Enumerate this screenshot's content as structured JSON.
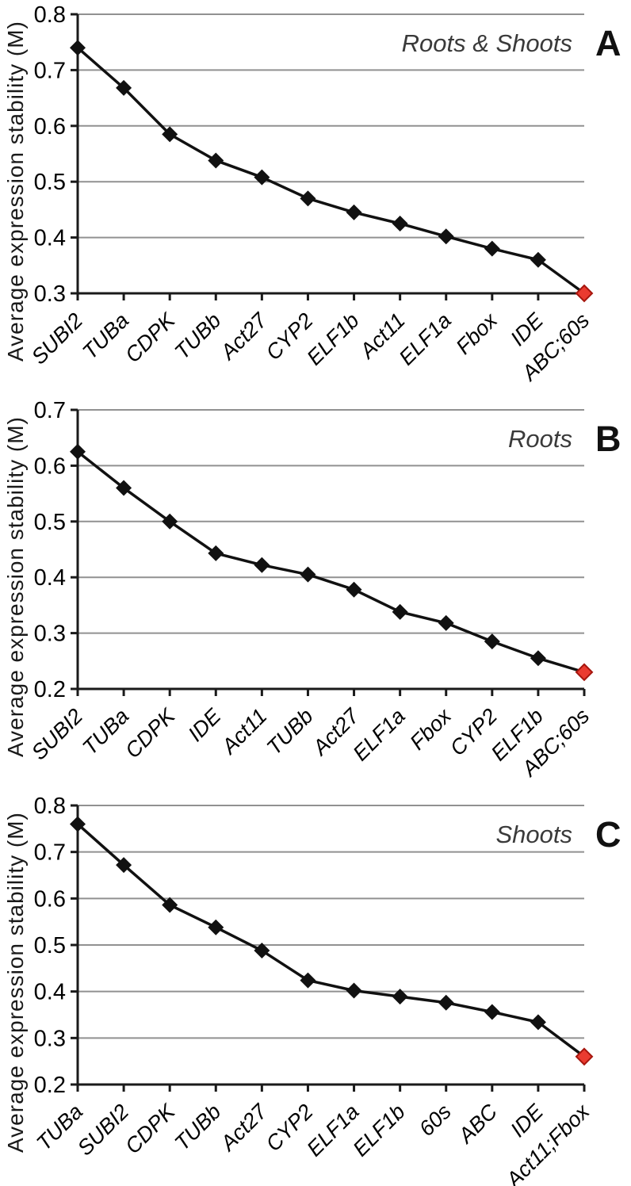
{
  "style": {
    "gridline_color": "#919191",
    "axis_color": "#1a1a1a",
    "text_color": "#000000",
    "title_color": "#3a3a3a",
    "line_color": "#111111",
    "marker_color": "#111111",
    "highlight_fill": "#ea3b30",
    "highlight_stroke": "#a6160e"
  },
  "chart_data": [
    {
      "type": "line",
      "panel_letter": "A",
      "title": "Roots & Shoots",
      "ylabel": "Average expression stability (M)",
      "xlabel": "",
      "grid": true,
      "legend": null,
      "ylim": [
        0.3,
        0.8
      ],
      "yticks": [
        0.8,
        0.7,
        0.6,
        0.5,
        0.4,
        0.3
      ],
      "categories": [
        "SUBI2",
        "TUBa",
        "CDPK",
        "TUBb",
        "Act27",
        "CYP2",
        "ELF1b",
        "Act11",
        "ELF1a",
        "Fbox",
        "IDE",
        "ABC;60s"
      ],
      "values": [
        0.74,
        0.668,
        0.585,
        0.538,
        0.508,
        0.47,
        0.445,
        0.425,
        0.402,
        0.38,
        0.36,
        0.3
      ],
      "highlight_last_point": true
    },
    {
      "type": "line",
      "panel_letter": "B",
      "title": "Roots",
      "ylabel": "Average expression stability (M)",
      "xlabel": "",
      "grid": true,
      "legend": null,
      "ylim": [
        0.2,
        0.7
      ],
      "yticks": [
        0.7,
        0.6,
        0.5,
        0.4,
        0.3,
        0.2
      ],
      "categories": [
        "SUBI2",
        "TUBa",
        "CDPK",
        "IDE",
        "Act11",
        "TUBb",
        "Act27",
        "ELF1a",
        "Fbox",
        "CYP2",
        "ELF1b",
        "ABC;60s"
      ],
      "values": [
        0.625,
        0.56,
        0.5,
        0.443,
        0.422,
        0.405,
        0.378,
        0.338,
        0.318,
        0.285,
        0.255,
        0.23
      ],
      "highlight_last_point": true
    },
    {
      "type": "line",
      "panel_letter": "C",
      "title": "Shoots",
      "ylabel": "Average expression stability (M)",
      "xlabel": "",
      "grid": true,
      "legend": null,
      "ylim": [
        0.2,
        0.8
      ],
      "yticks": [
        0.8,
        0.7,
        0.6,
        0.5,
        0.4,
        0.3,
        0.2
      ],
      "categories": [
        "TUBa",
        "SUBI2",
        "CDPK",
        "TUBb",
        "Act27",
        "CYP2",
        "ELF1a",
        "ELF1b",
        "60s",
        "ABC",
        "IDE",
        "Act11;Fbox"
      ],
      "values": [
        0.76,
        0.672,
        0.586,
        0.538,
        0.488,
        0.424,
        0.402,
        0.389,
        0.376,
        0.356,
        0.334,
        0.26
      ],
      "highlight_last_point": true
    }
  ]
}
